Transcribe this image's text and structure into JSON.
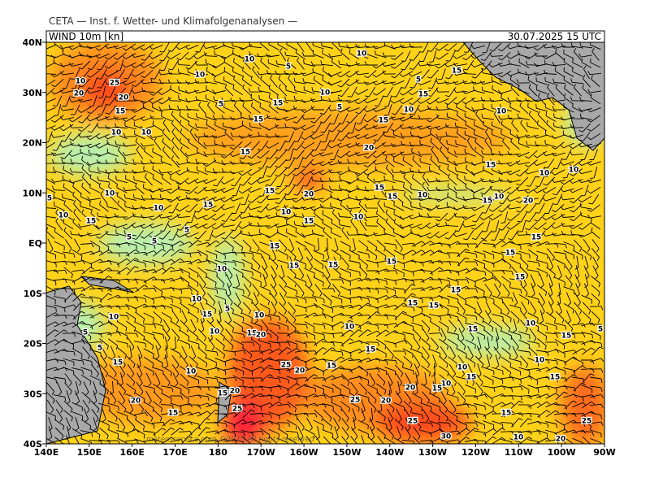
{
  "header": {
    "institute": "CETA — Inst. f. Wetter- und Klimafolgenanalysen —",
    "field": "WIND 10m [kn]",
    "valid_time": "30.07.2025 15 UTC"
  },
  "map": {
    "lat_labels": [
      "40N",
      "30N",
      "20N",
      "10N",
      "EQ",
      "10S",
      "20S",
      "30S",
      "40S"
    ],
    "lon_labels": [
      "140E",
      "150E",
      "160E",
      "170E",
      "180",
      "170W",
      "160W",
      "150W",
      "140W",
      "130W",
      "120W",
      "110W",
      "100W",
      "90W"
    ],
    "contour_labels": [
      10,
      5,
      10,
      5,
      15,
      10,
      10,
      25,
      20,
      20,
      5,
      15,
      10,
      5,
      10,
      15,
      10,
      15,
      15,
      15,
      10,
      10,
      15,
      20,
      15,
      10,
      10,
      10,
      15,
      20,
      15,
      15,
      10,
      15,
      10,
      20,
      5,
      15,
      10,
      10,
      10,
      15,
      15,
      10,
      5,
      5,
      5,
      15,
      15,
      15,
      15,
      15,
      15,
      10,
      15,
      15,
      10,
      15,
      15,
      5,
      15,
      10,
      10,
      10,
      15,
      10,
      5,
      15,
      20,
      10,
      15,
      5,
      5,
      15,
      15,
      25,
      20,
      15,
      10,
      10,
      10,
      15,
      15,
      20,
      15,
      20,
      10,
      15,
      25,
      20,
      20,
      25,
      15,
      15,
      25,
      25,
      30,
      10,
      20
    ],
    "footer": "meteo-service.com ©2025   All rights reserved"
  }
}
